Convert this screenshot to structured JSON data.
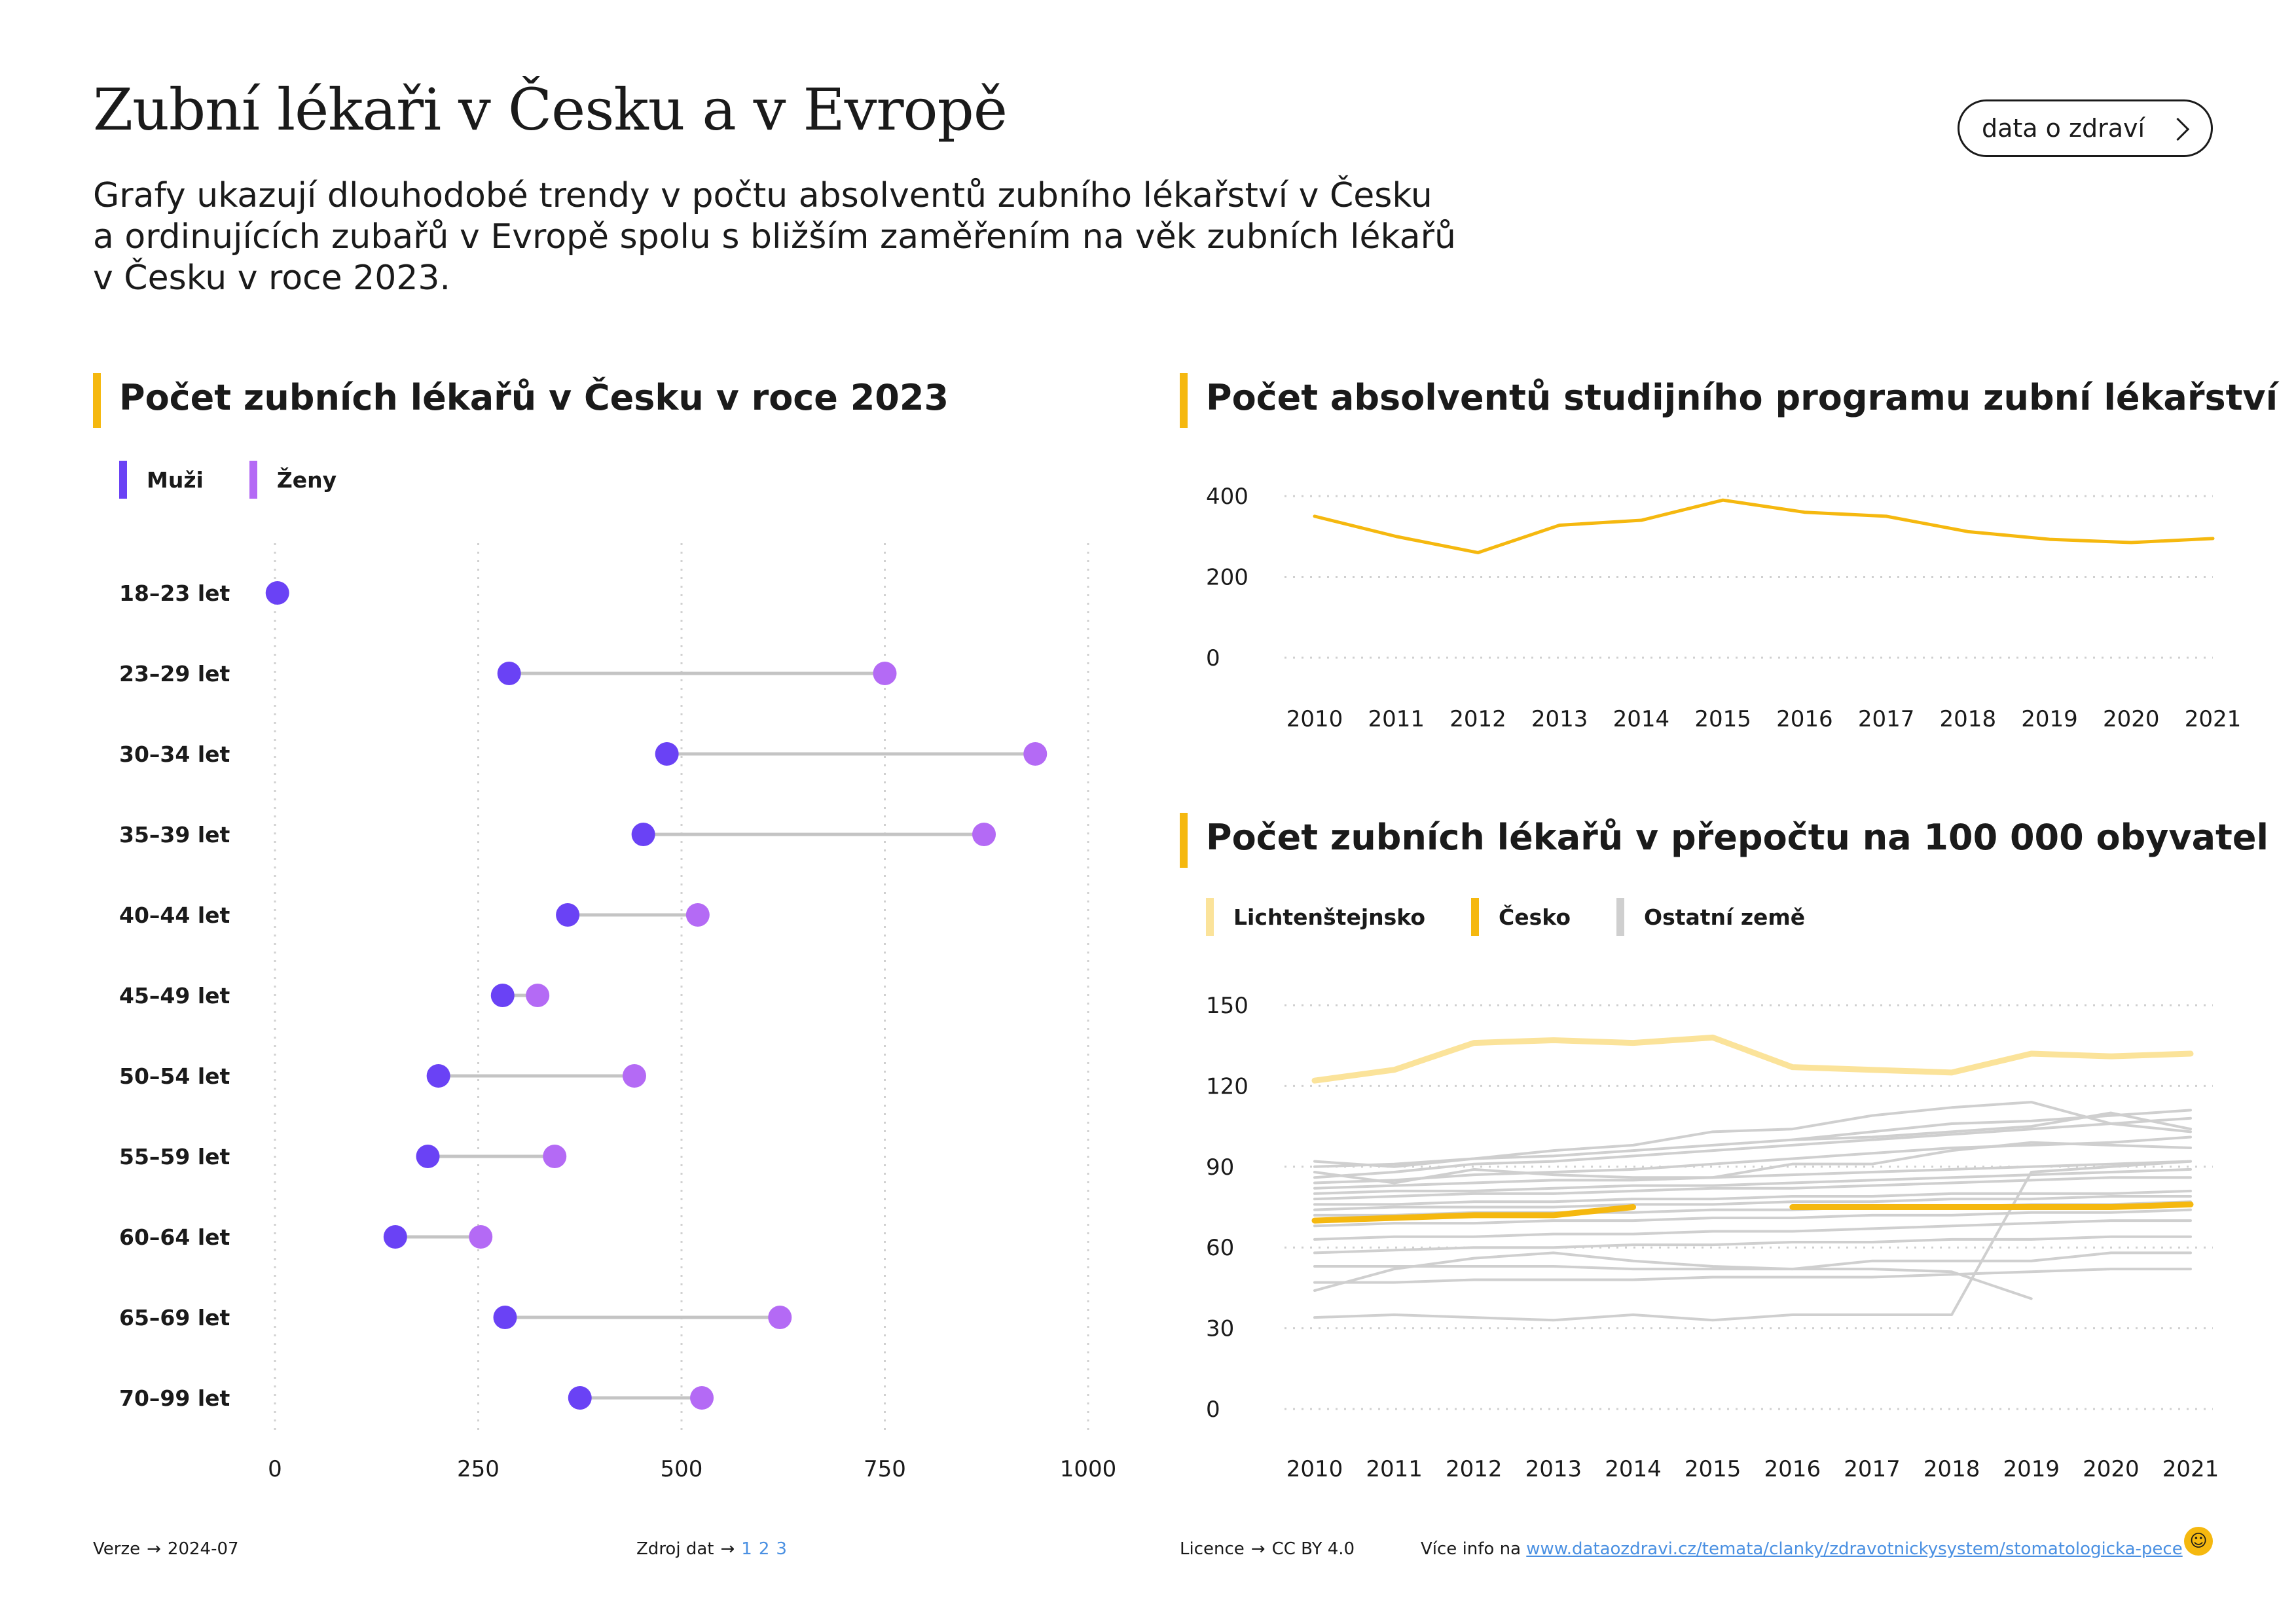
{
  "header": {
    "title": "Zubní lékaři v Česku a v Evropě",
    "subtitle_lines": [
      "Grafy ukazují dlouhodobé trendy v počtu absolventů zubního lékařství v Česku",
      "a ordinujících zubařů v Evropě spolu s bližším zaměřením na věk zubních lékařů",
      "v Česku v roce 2023."
    ],
    "brand_button": "data o zdraví",
    "brand_button_icon": "chevron-right-icon"
  },
  "colors": {
    "accent": "#f5b80f",
    "men": "#6a42f5",
    "women": "#b46af5",
    "connector": "#c4c4c4",
    "liechtenstein": "#fbe39a",
    "czechia": "#f5b80f",
    "other": "#cfcfcf"
  },
  "panels": {
    "age": {
      "title": "Počet zubních lékařů v Česku v roce 2023",
      "legend": [
        "Muži",
        "Ženy"
      ]
    },
    "graduates": {
      "title": "Počet absolventů studijního programu zubní lékařství"
    },
    "per100k": {
      "title": "Počet zubních lékařů v přepočtu na 100 000 obyvatel",
      "legend": [
        "Lichtenštejnsko",
        "Česko",
        "Ostatní země"
      ]
    }
  },
  "chart_data": [
    {
      "type": "dumbbell",
      "title": "Počet zubních lékařů v Česku v roce 2023",
      "categories": [
        "18–23 let",
        "23–29 let",
        "30–34 let",
        "35–39 let",
        "40–44 let",
        "45–49 let",
        "50–54 let",
        "55–59 let",
        "60–64 let",
        "65–69 let",
        "70–99 let"
      ],
      "series": [
        {
          "name": "Muži",
          "values": [
            3,
            288,
            482,
            453,
            360,
            280,
            201,
            188,
            148,
            283,
            375
          ]
        },
        {
          "name": "Ženy",
          "values": [
            null,
            750,
            935,
            872,
            520,
            323,
            442,
            344,
            253,
            621,
            525
          ]
        }
      ],
      "xlim": [
        0,
        1000
      ],
      "xticks": [
        "0",
        "250",
        "500",
        "750",
        "1000"
      ],
      "grid": true,
      "legend_position": "top-left"
    },
    {
      "type": "line",
      "title": "Počet absolventů studijního programu zubní lékařství",
      "x": [
        "2010",
        "2011",
        "2012",
        "2013",
        "2014",
        "2015",
        "2016",
        "2017",
        "2018",
        "2019",
        "2020",
        "2021"
      ],
      "series": [
        {
          "values": [
            350,
            300,
            260,
            328,
            340,
            390,
            360,
            350,
            312,
            293,
            285,
            295
          ]
        }
      ],
      "ylim": [
        0,
        400
      ],
      "yticks": [
        "0",
        "200",
        "400"
      ],
      "grid": true
    },
    {
      "type": "line",
      "title": "Počet zubních lékařů v přepočtu na 100 000 obyvatel",
      "x": [
        "2010",
        "2011",
        "2012",
        "2013",
        "2014",
        "2015",
        "2016",
        "2017",
        "2018",
        "2019",
        "2020",
        "2021"
      ],
      "ylim": [
        0,
        150
      ],
      "yticks": [
        "0",
        "30",
        "60",
        "90",
        "120",
        "150"
      ],
      "grid": true,
      "legend_position": "top-left",
      "series": [
        {
          "name": "Lichtenštejnsko",
          "values": [
            122,
            126,
            136,
            137,
            136,
            138,
            127,
            126,
            125,
            132,
            131,
            132
          ]
        },
        {
          "name": "Česko",
          "values": [
            70,
            71,
            72,
            72,
            75,
            null,
            75,
            75,
            75,
            75,
            75,
            76
          ]
        },
        {
          "name": "Ostatní země",
          "values": [
            92,
            90,
            93,
            96,
            98,
            103,
            104,
            109,
            112,
            114,
            106,
            103
          ]
        },
        {
          "name": "Ostatní země",
          "values": [
            90,
            91,
            93,
            94,
            96,
            98,
            100,
            103,
            106,
            107,
            109,
            111
          ]
        },
        {
          "name": "Ostatní země",
          "values": [
            86,
            88,
            91,
            92,
            94,
            96,
            98,
            100,
            102,
            104,
            106,
            108
          ]
        },
        {
          "name": "Ostatní země",
          "values": [
            84,
            85,
            87,
            88,
            89,
            91,
            93,
            95,
            97,
            98,
            99,
            101
          ]
        },
        {
          "name": "Ostatní země",
          "values": [
            88,
            84,
            89,
            87,
            86,
            86,
            91,
            91,
            96,
            99,
            98,
            97
          ]
        },
        {
          "name": "Ostatní země",
          "values": [
            82,
            83,
            84,
            85,
            85,
            86,
            87,
            88,
            89,
            90,
            91,
            92
          ]
        },
        {
          "name": "Ostatní země",
          "values": [
            80,
            81,
            81,
            82,
            83,
            83,
            84,
            85,
            86,
            87,
            88,
            89
          ]
        },
        {
          "name": "Ostatní země",
          "values": [
            78,
            79,
            80,
            80,
            81,
            82,
            82,
            83,
            84,
            85,
            86,
            86
          ]
        },
        {
          "name": "Ostatní země",
          "values": [
            76,
            76,
            77,
            77,
            78,
            78,
            79,
            79,
            80,
            80,
            80,
            81
          ]
        },
        {
          "name": "Ostatní země",
          "values": [
            74,
            75,
            75,
            75,
            76,
            76,
            77,
            77,
            78,
            78,
            79,
            79
          ]
        },
        {
          "name": "Ostatní země",
          "values": [
            72,
            72,
            73,
            73,
            73,
            74,
            74,
            75,
            75,
            76,
            76,
            77
          ]
        },
        {
          "name": "Ostatní země",
          "values": [
            68,
            69,
            69,
            70,
            70,
            71,
            71,
            72,
            72,
            73,
            73,
            74
          ]
        },
        {
          "name": "Ostatní země",
          "values": [
            63,
            64,
            64,
            65,
            65,
            66,
            66,
            67,
            68,
            69,
            70,
            70
          ]
        },
        {
          "name": "Ostatní země",
          "values": [
            58,
            59,
            60,
            60,
            61,
            61,
            62,
            62,
            63,
            63,
            64,
            64
          ]
        },
        {
          "name": "Ostatní země",
          "values": [
            53,
            53,
            53,
            53,
            52,
            52,
            52,
            55,
            55,
            55,
            58,
            58
          ]
        },
        {
          "name": "Ostatní země",
          "values": [
            47,
            47,
            48,
            48,
            48,
            49,
            49,
            49,
            50,
            51,
            52,
            52
          ]
        },
        {
          "name": "Ostatní země",
          "values": [
            34,
            35,
            34,
            33,
            35,
            33,
            35,
            35,
            35,
            88,
            90,
            92
          ]
        },
        {
          "name": "Ostatní země",
          "values": [
            44,
            52,
            56,
            58,
            55,
            53,
            52,
            52,
            51,
            41,
            null,
            null
          ]
        },
        {
          "name": "Ostatní země",
          "values": [
            null,
            null,
            null,
            null,
            null,
            null,
            100,
            101,
            103,
            105,
            110,
            104
          ]
        }
      ]
    }
  ],
  "footer": {
    "version_label": "Verze",
    "version_value": "2024-07",
    "source_label": "Zdroj dat",
    "sources": [
      "1",
      "2",
      "3"
    ],
    "license_label": "Licence",
    "license_value": "CC BY 4.0",
    "more_info_label": "Více info na",
    "more_info_url": "www.dataozdravi.cz/temata/clanky/zdravotnickysystem/stomatologicka-pece",
    "arrow": "→",
    "logo_glyph": "☺"
  }
}
